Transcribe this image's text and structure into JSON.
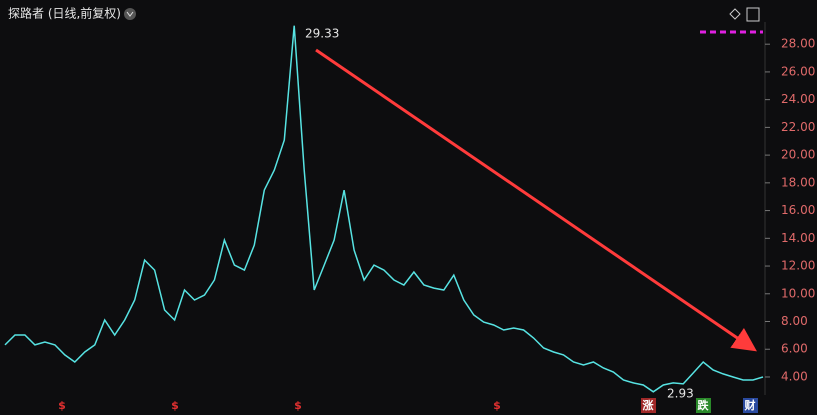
{
  "chart_data": {
    "type": "line",
    "title": "探路者 (日线,前复权)",
    "color": "#57e3e3",
    "values": [
      6.31,
      7.03,
      7.03,
      6.31,
      6.52,
      6.31,
      5.59,
      5.08,
      5.8,
      6.31,
      8.11,
      7.03,
      8.11,
      9.55,
      12.43,
      11.71,
      8.83,
      8.11,
      10.27,
      9.55,
      9.91,
      10.99,
      13.87,
      12.07,
      11.71,
      13.51,
      17.48,
      18.92,
      21.08,
      29.33,
      18.92,
      10.27,
      12.07,
      13.87,
      17.48,
      13.15,
      10.99,
      12.07,
      11.71,
      10.99,
      10.63,
      11.57,
      10.63,
      10.41,
      10.27,
      11.35,
      9.55,
      8.47,
      7.96,
      7.75,
      7.39,
      7.53,
      7.39,
      6.81,
      6.09,
      5.8,
      5.59,
      5.08,
      4.86,
      5.08,
      4.65,
      4.36,
      3.78,
      3.57,
      3.42,
      2.93,
      3.42,
      3.57,
      3.5,
      4.29,
      5.08,
      4.5,
      4.22,
      4.0,
      3.78,
      3.78,
      4.0
    ],
    "ylim": [
      2.7,
      29.6
    ],
    "yticks": [
      {
        "value": 4,
        "label": "4.00"
      },
      {
        "value": 6,
        "label": "6.00"
      },
      {
        "value": 8,
        "label": "8.00"
      },
      {
        "value": 10,
        "label": "10.00"
      },
      {
        "value": 12,
        "label": "12.00"
      },
      {
        "value": 14,
        "label": "14.00"
      },
      {
        "value": 16,
        "label": "16.00"
      },
      {
        "value": 18,
        "label": "18.00"
      },
      {
        "value": 20,
        "label": "20.00"
      },
      {
        "value": 22,
        "label": "22.00"
      },
      {
        "value": 24,
        "label": "24.00"
      },
      {
        "value": 26,
        "label": "26.00"
      },
      {
        "value": 28,
        "label": "28.00"
      }
    ],
    "annotations": {
      "high": "29.33",
      "low": "2.93"
    },
    "markers": [
      "$",
      "$",
      "$",
      "$",
      "涨",
      "跌",
      "财"
    ]
  }
}
